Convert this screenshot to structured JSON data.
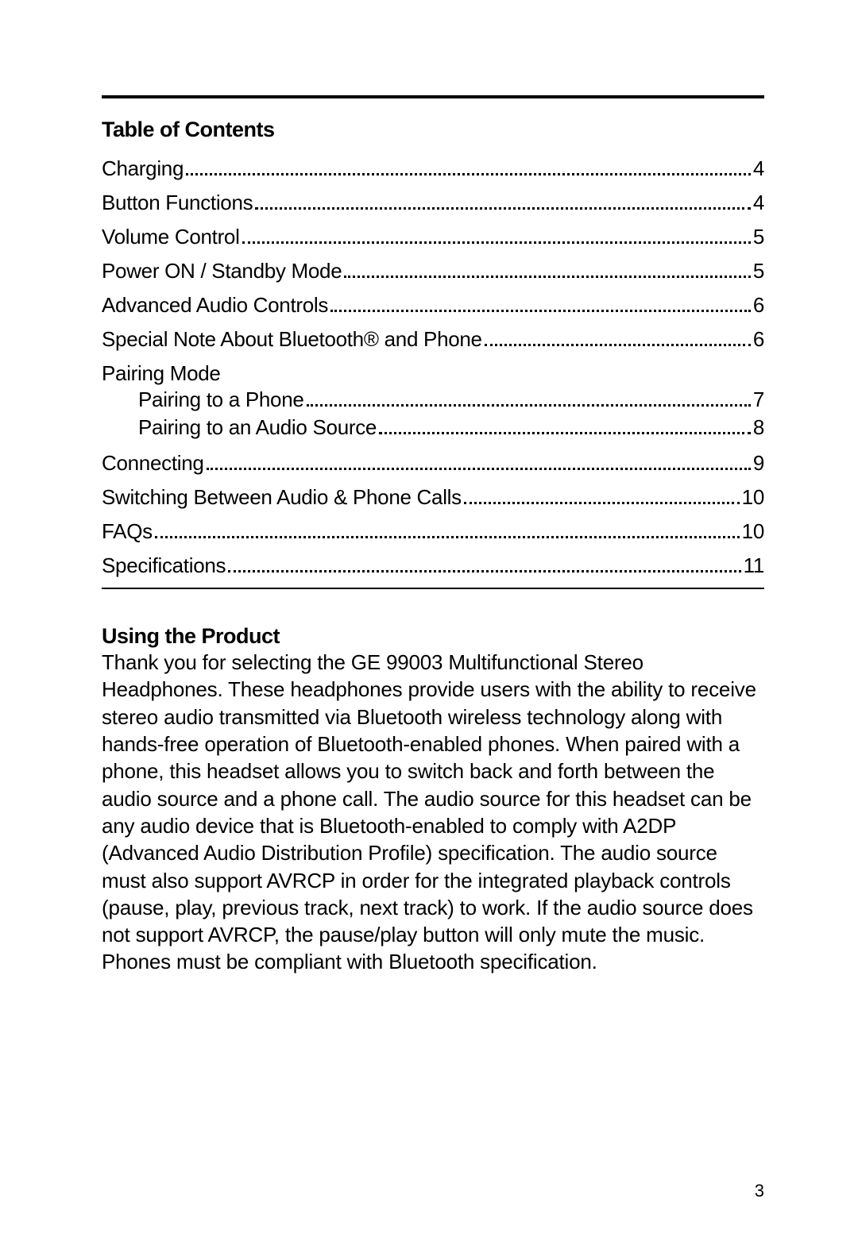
{
  "colors": {
    "text": "#000000",
    "background": "#ffffff",
    "rule": "#000000",
    "dot": "#000000"
  },
  "typography": {
    "toc_title_size": 27,
    "toc_entry_size": 26,
    "section_title_size": 27,
    "body_size": 26,
    "page_num_size": 22
  },
  "toc": {
    "title": "Table of Contents",
    "entries": [
      {
        "label": "Charging",
        "page": "4"
      },
      {
        "label": "Button Functions",
        "page": "4"
      },
      {
        "label": "Volume Control",
        "page": "5"
      },
      {
        "label": "Power ON / Standby Mode",
        "page": "5"
      },
      {
        "label": "Advanced Audio Controls",
        "page": "6"
      },
      {
        "label": "Special Note About Bluetooth® and Phone",
        "page": "6"
      },
      {
        "label": "Pairing Mode",
        "sub": [
          {
            "label": "Pairing to a Phone",
            "page": "7"
          },
          {
            "label": "Pairing to an Audio Source",
            "page": "8"
          }
        ]
      },
      {
        "label": "Connecting",
        "page": "9"
      },
      {
        "label": "Switching Between Audio & Phone Calls",
        "page": "10"
      },
      {
        "label": "FAQs",
        "page": "10"
      },
      {
        "label": "Specifications",
        "page": "11"
      }
    ]
  },
  "section": {
    "title": "Using the Product",
    "body": "Thank you for selecting the GE 99003 Multifunctional Stereo Headphones. These headphones provide users with the ability to receive stereo audio transmitted via Bluetooth wireless technology along with hands-free operation of Bluetooth-enabled phones. When paired with a phone, this headset allows you to switch back and forth between the audio source and a phone call. The audio source for this headset can be any audio device that is Bluetooth-enabled to comply with A2DP (Advanced Audio Distribution Profile) specification. The audio source must also support AVRCP in order for the integrated playback controls (pause, play, previous track, next track) to work. If the audio source does not support AVRCP, the pause/play button will only mute the music. Phones must be compliant with Bluetooth specification."
  },
  "page_number": "3"
}
